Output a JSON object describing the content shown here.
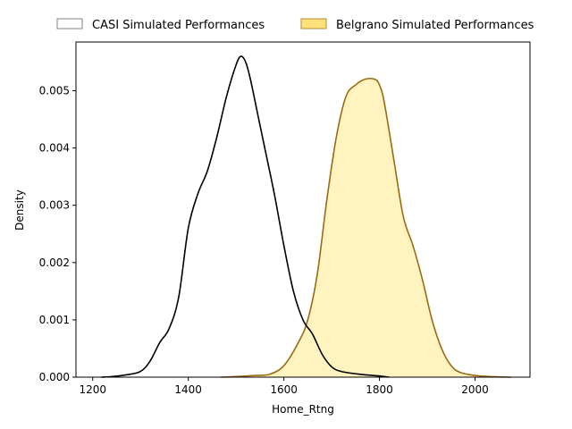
{
  "chart_data": {
    "type": "area",
    "title": "",
    "xlabel": "Home_Rtng",
    "ylabel": "Density",
    "xlim": [
      1165,
      2115
    ],
    "ylim": [
      0,
      0.00585
    ],
    "xticks": [
      1200,
      1400,
      1600,
      1800,
      2000
    ],
    "yticks": [
      0.0,
      0.001,
      0.002,
      0.003,
      0.004,
      0.005
    ],
    "ytick_labels": [
      "0.000",
      "0.001",
      "0.002",
      "0.003",
      "0.004",
      "0.005"
    ],
    "grid": false,
    "legend_position": "top-center, above plot",
    "series": [
      {
        "name": "CASI Simulated Performances",
        "line_color": "#000000",
        "fill_color": "#ffffff",
        "x": [
          1218,
          1240,
          1270,
          1300,
          1320,
          1340,
          1360,
          1380,
          1400,
          1420,
          1440,
          1460,
          1480,
          1500,
          1510,
          1520,
          1530,
          1545,
          1560,
          1580,
          1600,
          1620,
          1640,
          1660,
          1680,
          1700,
          1720,
          1760,
          1800,
          1820
        ],
        "y": [
          0.0,
          1e-05,
          4e-05,
          0.0001,
          0.00028,
          0.0006,
          0.00085,
          0.0014,
          0.0026,
          0.0032,
          0.0036,
          0.0042,
          0.0049,
          0.00545,
          0.0056,
          0.0055,
          0.0052,
          0.0046,
          0.004,
          0.0032,
          0.0023,
          0.0015,
          0.001,
          0.00075,
          0.0004,
          0.00018,
          0.0001,
          5e-05,
          2e-05,
          0.0
        ]
      },
      {
        "name": "Belgrano Simulated Performances",
        "line_color": "#9c6a12",
        "fill_color": "#fff3c0",
        "legend_color": "#ffe07a",
        "x": [
          1468,
          1500,
          1540,
          1570,
          1600,
          1630,
          1650,
          1670,
          1690,
          1710,
          1730,
          1750,
          1770,
          1790,
          1800,
          1810,
          1830,
          1850,
          1870,
          1890,
          1910,
          1930,
          1950,
          1970,
          2000,
          2030,
          2075
        ],
        "y": [
          0.0,
          1e-05,
          3e-05,
          5e-05,
          0.0002,
          0.0006,
          0.001,
          0.0018,
          0.0031,
          0.0042,
          0.0049,
          0.0051,
          0.0052,
          0.0052,
          0.0051,
          0.0048,
          0.0038,
          0.0028,
          0.0023,
          0.0017,
          0.001,
          0.0005,
          0.0002,
          8e-05,
          3e-05,
          1e-05,
          0.0
        ]
      }
    ]
  }
}
